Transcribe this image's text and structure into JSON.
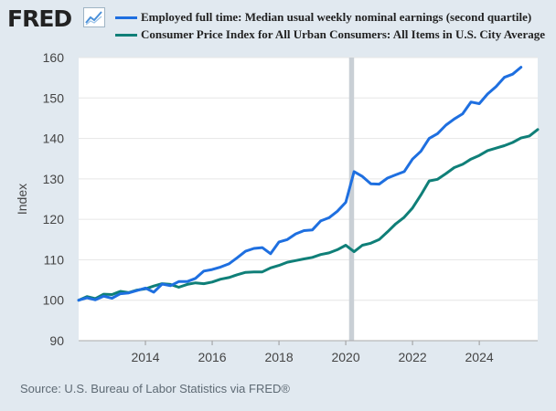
{
  "brand": {
    "logo_text": "FRED",
    "logo_icon": "line-chart-icon"
  },
  "colors": {
    "series_earnings": "#1e6fe0",
    "series_cpi": "#0f7f78",
    "recession_shade": "#c9cfd5",
    "plot_bg": "#ffffff",
    "page_bg": "#e1e9f0",
    "grid": "#e6e6e6",
    "tick_text": "#444444"
  },
  "source_text": "Source: U.S. Bureau of Labor Statistics via FRED®",
  "chart_data": {
    "type": "line",
    "title": "",
    "xlabel": "",
    "ylabel": "Index",
    "ylim": [
      90,
      160
    ],
    "yticks": [
      90,
      100,
      110,
      120,
      130,
      140,
      150,
      160
    ],
    "xlim": [
      2012.0,
      2025.75
    ],
    "xticks": [
      2014,
      2016,
      2018,
      2020,
      2022,
      2024
    ],
    "xtick_labels": [
      "2014",
      "2016",
      "2018",
      "2020",
      "2022",
      "2024"
    ],
    "grid": true,
    "recession": {
      "start": 2020.1,
      "end": 2020.25
    },
    "series": [
      {
        "name": "Employed full time: Median usual weekly nominal earnings (second quartile)",
        "legend": "Employed full time: Median usual weekly nominal earnings (second quartile)",
        "color": "#1e6fe0",
        "x": [
          2012.0,
          2012.25,
          2012.5,
          2012.75,
          2013.0,
          2013.25,
          2013.5,
          2013.75,
          2014.0,
          2014.25,
          2014.5,
          2014.75,
          2015.0,
          2015.25,
          2015.5,
          2015.75,
          2016.0,
          2016.25,
          2016.5,
          2016.75,
          2017.0,
          2017.25,
          2017.5,
          2017.75,
          2018.0,
          2018.25,
          2018.5,
          2018.75,
          2019.0,
          2019.25,
          2019.5,
          2019.75,
          2020.0,
          2020.25,
          2020.5,
          2020.75,
          2021.0,
          2021.25,
          2021.5,
          2021.75,
          2022.0,
          2022.25,
          2022.5,
          2022.75,
          2023.0,
          2023.25,
          2023.5,
          2023.75,
          2024.0,
          2024.25,
          2024.5,
          2024.75,
          2025.0,
          2025.25
        ],
        "values": [
          100.0,
          100.6,
          100.1,
          101.0,
          100.5,
          101.6,
          101.8,
          102.4,
          103.0,
          102.0,
          104.0,
          103.6,
          104.6,
          104.6,
          105.4,
          107.2,
          107.6,
          108.2,
          109.0,
          110.5,
          112.1,
          112.8,
          113.0,
          111.5,
          114.4,
          115.0,
          116.4,
          117.2,
          117.4,
          119.6,
          120.4,
          122.0,
          124.2,
          131.8,
          130.6,
          128.8,
          128.7,
          130.2,
          131.0,
          131.8,
          134.9,
          136.8,
          140.0,
          141.2,
          143.3,
          144.8,
          146.1,
          149.0,
          148.6,
          151.0,
          152.8,
          155.1,
          155.9,
          157.6
        ]
      },
      {
        "name": "Consumer Price Index for All Urban Consumers: All Items in U.S. City Average",
        "legend": "Consumer Price Index for All Urban Consumers: All Items in U.S. City Average",
        "color": "#0f7f78",
        "x": [
          2012.0,
          2012.25,
          2012.5,
          2012.75,
          2013.0,
          2013.25,
          2013.5,
          2013.75,
          2014.0,
          2014.25,
          2014.5,
          2014.75,
          2015.0,
          2015.25,
          2015.5,
          2015.75,
          2016.0,
          2016.25,
          2016.5,
          2016.75,
          2017.0,
          2017.25,
          2017.5,
          2017.75,
          2018.0,
          2018.25,
          2018.5,
          2018.75,
          2019.0,
          2019.25,
          2019.5,
          2019.75,
          2020.0,
          2020.25,
          2020.5,
          2020.75,
          2021.0,
          2021.25,
          2021.5,
          2021.75,
          2022.0,
          2022.25,
          2022.5,
          2022.75,
          2023.0,
          2023.25,
          2023.5,
          2023.75,
          2024.0,
          2024.25,
          2024.5,
          2024.75,
          2025.0,
          2025.25,
          2025.5,
          2025.75
        ],
        "values": [
          100.0,
          100.9,
          100.4,
          101.5,
          101.4,
          102.2,
          101.9,
          102.5,
          102.8,
          103.5,
          104.1,
          103.9,
          103.2,
          103.9,
          104.3,
          104.1,
          104.5,
          105.2,
          105.6,
          106.3,
          106.9,
          107.0,
          107.0,
          108.0,
          108.6,
          109.4,
          109.8,
          110.2,
          110.6,
          111.3,
          111.7,
          112.5,
          113.6,
          112.0,
          113.6,
          114.1,
          115.0,
          116.9,
          118.9,
          120.5,
          122.8,
          126.0,
          129.5,
          129.9,
          131.3,
          132.8,
          133.6,
          134.9,
          135.8,
          137.0,
          137.6,
          138.2,
          139.0,
          140.1,
          140.6,
          142.2
        ]
      }
    ]
  }
}
